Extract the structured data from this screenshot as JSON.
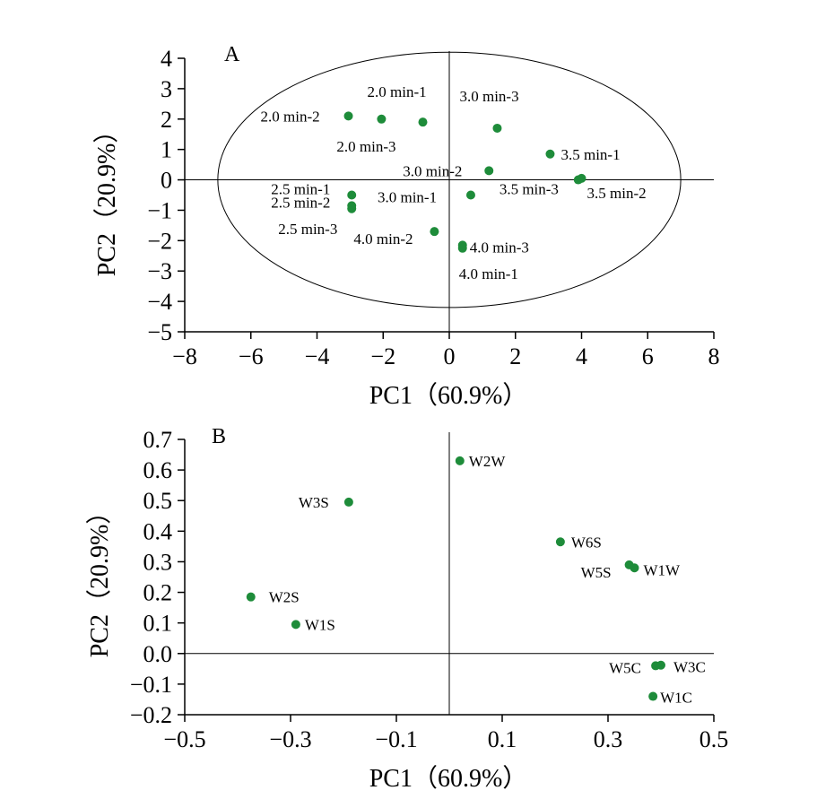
{
  "chart_data": [
    {
      "type": "scatter",
      "panel_label": "A",
      "xlabel": "PC1（60.9%）",
      "ylabel": "PC2（20.9%）",
      "xlim": [
        -8,
        8
      ],
      "ylim": [
        -5,
        4
      ],
      "xticks": [
        -8,
        -6,
        -4,
        -2,
        0,
        2,
        4,
        6,
        8
      ],
      "yticks": [
        -5,
        -4,
        -3,
        -2,
        -1,
        0,
        1,
        2,
        3,
        4
      ],
      "grid": false,
      "zero_lines": true,
      "ellipse": {
        "center": [
          0,
          0
        ],
        "rx": 7,
        "ry": 4.2
      },
      "marker_color": "#1e8c3a",
      "points": [
        {
          "label": "2.0 min-1",
          "x": -0.8,
          "y": 1.9
        },
        {
          "label": "2.0 min-2",
          "x": -3.05,
          "y": 2.1
        },
        {
          "label": "2.0 min-3",
          "x": -2.05,
          "y": 2.0
        },
        {
          "label": "3.0 min-3",
          "x": 1.45,
          "y": 1.7
        },
        {
          "label": "3.5 min-1",
          "x": 3.05,
          "y": 0.85
        },
        {
          "label": "3.0 min-2",
          "x": 1.2,
          "y": 0.3
        },
        {
          "label": "3.5 min-3",
          "x": 3.9,
          "y": 0.0
        },
        {
          "label": "3.5 min-2",
          "x": 4.0,
          "y": 0.05
        },
        {
          "label": "2.5 min-1",
          "x": -2.95,
          "y": -0.5
        },
        {
          "label": "2.5 min-2",
          "x": -2.95,
          "y": -0.85
        },
        {
          "label": "2.5 min-3",
          "x": -2.95,
          "y": -0.95
        },
        {
          "label": "3.0 min-1",
          "x": 0.65,
          "y": -0.5
        },
        {
          "label": "4.0 min-2",
          "x": -0.45,
          "y": -1.7
        },
        {
          "label": "4.0 min-3",
          "x": 0.4,
          "y": -2.15
        },
        {
          "label": "4.0 min-1",
          "x": 0.4,
          "y": -2.25
        }
      ]
    },
    {
      "type": "scatter",
      "panel_label": "B",
      "xlabel": "PC1（60.9%）",
      "ylabel": "PC2（20.9%）",
      "xlim": [
        -0.5,
        0.5
      ],
      "ylim": [
        -0.2,
        0.7
      ],
      "xticks": [
        -0.5,
        -0.3,
        -0.1,
        0.1,
        0.3,
        0.5
      ],
      "xtick_labels": [
        "−0.5",
        "−0.3",
        "−0.1",
        "0.1",
        "0.3",
        "0.5"
      ],
      "yticks": [
        -0.2,
        -0.1,
        0.0,
        0.1,
        0.2,
        0.3,
        0.4,
        0.5,
        0.6,
        0.7
      ],
      "ytick_labels": [
        "−0.2",
        "−0.1",
        "0.0",
        "0.1",
        "0.2",
        "0.3",
        "0.4",
        "0.5",
        "0.6",
        "0.7"
      ],
      "grid": false,
      "zero_lines": true,
      "marker_color": "#1e8c3a",
      "points": [
        {
          "label": "W2W",
          "x": 0.02,
          "y": 0.63
        },
        {
          "label": "W3S",
          "x": -0.19,
          "y": 0.495
        },
        {
          "label": "W6S",
          "x": 0.21,
          "y": 0.365
        },
        {
          "label": "W5S",
          "x": 0.34,
          "y": 0.29
        },
        {
          "label": "W1W",
          "x": 0.35,
          "y": 0.28
        },
        {
          "label": "W2S",
          "x": -0.375,
          "y": 0.185
        },
        {
          "label": "W1S",
          "x": -0.29,
          "y": 0.095
        },
        {
          "label": "W5C",
          "x": 0.39,
          "y": -0.04
        },
        {
          "label": "W3C",
          "x": 0.4,
          "y": -0.038
        },
        {
          "label": "W1C",
          "x": 0.385,
          "y": -0.14
        }
      ]
    }
  ]
}
